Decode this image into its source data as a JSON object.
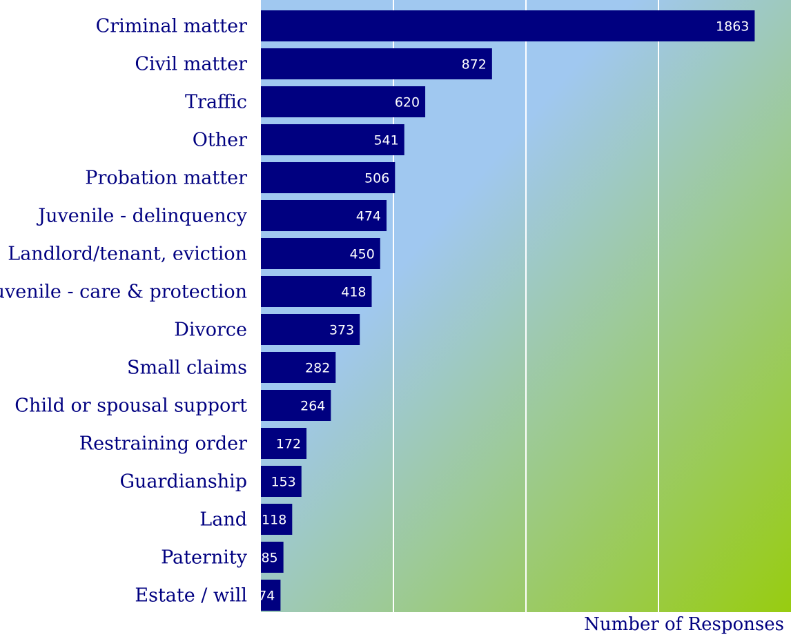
{
  "chart_data": {
    "type": "bar",
    "orientation": "horizontal",
    "categories": [
      "Criminal matter",
      "Civil matter",
      "Traffic",
      "Other",
      "Probation matter",
      "Juvenile - delinquency",
      "Landlord/tenant, eviction",
      "Juvenile - care & protection",
      "Divorce",
      "Small claims",
      "Child or spousal support",
      "Restraining order",
      "Guardianship",
      "Land",
      "Paternity",
      "Estate / will"
    ],
    "values": [
      1863,
      872,
      620,
      541,
      506,
      474,
      450,
      418,
      373,
      282,
      264,
      172,
      153,
      118,
      85,
      74
    ],
    "xlabel": "Number of Responses",
    "ylabel": "",
    "xlim": [
      0,
      2000
    ],
    "grid": true,
    "legend": "none",
    "colors": {
      "bar": "#000080",
      "text": "#000080",
      "value_label": "#ffffff",
      "gridline": "#ffffff",
      "background_gradient": [
        "#a0c8f0",
        "#98cc10"
      ]
    }
  }
}
